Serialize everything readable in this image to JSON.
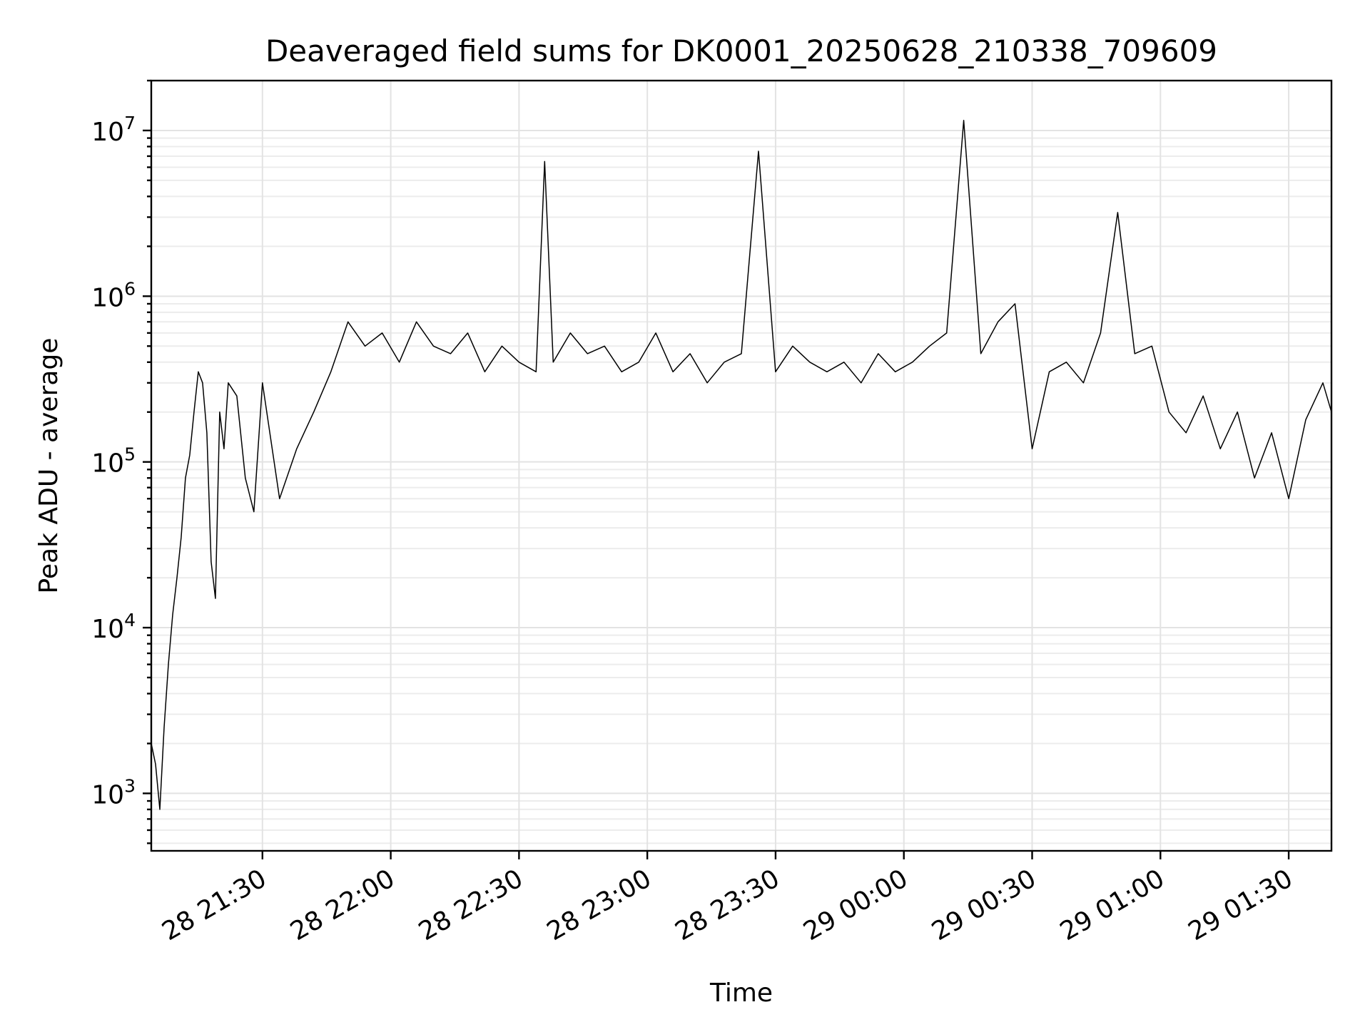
{
  "chart_data": {
    "type": "line",
    "title": "Deaveraged field sums for DK0001_20250628_210338_709609",
    "xlabel": "Time",
    "ylabel": "Peak ADU - average",
    "x_scale": "time",
    "y_scale": "log",
    "xlim": [
      "28 21:04",
      "29 01:40"
    ],
    "ylim": [
      450,
      20000000
    ],
    "x_ticks": [
      "28 21:30",
      "28 22:00",
      "28 22:30",
      "28 23:00",
      "28 23:30",
      "29 00:00",
      "29 00:30",
      "29 01:00",
      "29 01:30"
    ],
    "y_ticks": [
      {
        "base": "10",
        "exp": "3"
      },
      {
        "base": "10",
        "exp": "4"
      },
      {
        "base": "10",
        "exp": "5"
      },
      {
        "base": "10",
        "exp": "6"
      },
      {
        "base": "10",
        "exp": "7"
      }
    ],
    "grid": true,
    "legend": "none",
    "series": [
      {
        "color": "#000000",
        "x": [
          "28 21:04",
          "28 21:05",
          "28 21:06",
          "28 21:07",
          "28 21:08",
          "28 21:09",
          "28 21:10",
          "28 21:11",
          "28 21:12",
          "28 21:13",
          "28 21:14",
          "28 21:15",
          "28 21:16",
          "28 21:17",
          "28 21:18",
          "28 21:19",
          "28 21:20",
          "28 21:21",
          "28 21:22",
          "28 21:24",
          "28 21:26",
          "28 21:28",
          "28 21:30",
          "28 21:34",
          "28 21:38",
          "28 21:42",
          "28 21:46",
          "28 21:50",
          "28 21:54",
          "28 21:58",
          "28 22:02",
          "28 22:06",
          "28 22:10",
          "28 22:14",
          "28 22:18",
          "28 22:22",
          "28 22:26",
          "28 22:30",
          "28 22:34",
          "28 22:36",
          "28 22:38",
          "28 22:42",
          "28 22:46",
          "28 22:50",
          "28 22:54",
          "28 22:58",
          "28 23:02",
          "28 23:06",
          "28 23:10",
          "28 23:14",
          "28 23:18",
          "28 23:22",
          "28 23:26",
          "28 23:30",
          "28 23:34",
          "28 23:38",
          "28 23:42",
          "28 23:46",
          "28 23:50",
          "28 23:54",
          "28 23:58",
          "29 00:02",
          "29 00:06",
          "29 00:10",
          "29 00:14",
          "29 00:18",
          "29 00:22",
          "29 00:26",
          "29 00:30",
          "29 00:34",
          "29 00:38",
          "29 00:42",
          "29 00:46",
          "29 00:50",
          "29 00:54",
          "29 00:58",
          "29 01:02",
          "29 01:06",
          "29 01:10",
          "29 01:14",
          "29 01:18",
          "29 01:22",
          "29 01:26",
          "29 01:30",
          "29 01:34",
          "29 01:38",
          "29 01:40"
        ],
        "y": [
          2000,
          1500,
          800,
          2500,
          6000,
          12000,
          20000,
          35000,
          80000,
          110000,
          200000,
          350000,
          300000,
          150000,
          25000,
          15000,
          200000,
          120000,
          300000,
          250000,
          80000,
          50000,
          300000,
          60000,
          120000,
          200000,
          350000,
          700000,
          500000,
          600000,
          400000,
          700000,
          500000,
          450000,
          600000,
          350000,
          500000,
          400000,
          350000,
          6500000,
          400000,
          600000,
          450000,
          500000,
          350000,
          400000,
          600000,
          350000,
          450000,
          300000,
          400000,
          450000,
          7500000,
          350000,
          500000,
          400000,
          350000,
          400000,
          300000,
          450000,
          350000,
          400000,
          500000,
          600000,
          11500000,
          450000,
          700000,
          900000,
          120000,
          350000,
          400000,
          300000,
          600000,
          3200000,
          450000,
          500000,
          200000,
          150000,
          250000,
          120000,
          200000,
          80000,
          150000,
          60000,
          180000,
          300000,
          200000
        ]
      }
    ]
  }
}
